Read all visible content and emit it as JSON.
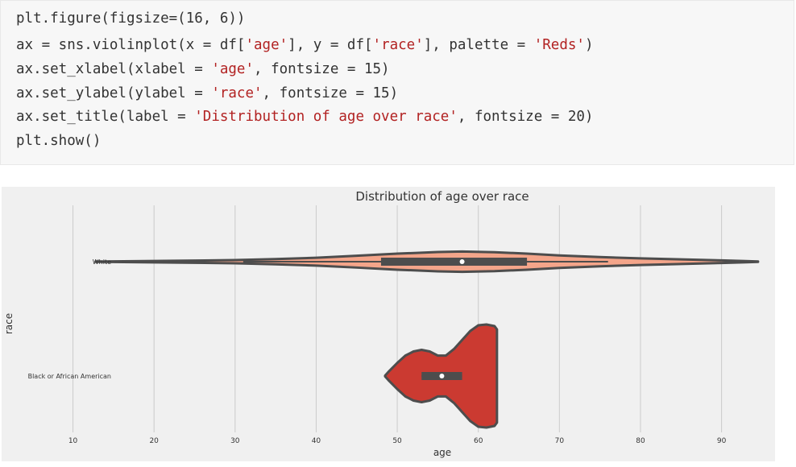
{
  "code_cell": {
    "lines": [
      [
        {
          "t": "plt.figure(figsize=(16, 6))"
        }
      ],
      [
        {
          "t": "ax = sns.violinplot(x = df["
        },
        {
          "t": "'age'",
          "s": 1
        },
        {
          "t": "], y = df["
        },
        {
          "t": "'race'",
          "s": 1
        },
        {
          "t": "], palette = "
        },
        {
          "t": "'Reds'",
          "s": 1
        },
        {
          "t": ")"
        }
      ],
      [
        {
          "t": "ax.set_xlabel(xlabel = "
        },
        {
          "t": "'age'",
          "s": 1
        },
        {
          "t": ", fontsize = 15)"
        }
      ],
      [
        {
          "t": "ax.set_ylabel(ylabel = "
        },
        {
          "t": "'race'",
          "s": 1
        },
        {
          "t": ", fontsize = 15)"
        }
      ],
      [
        {
          "t": "ax.set_title(label = "
        },
        {
          "t": "'Distribution of age over race'",
          "s": 1
        },
        {
          "t": ", fontsize = 20)"
        }
      ],
      [
        {
          "t": "plt.show()"
        }
      ]
    ]
  },
  "colors": {
    "code_bg": "#f7f7f7",
    "code_text": "#333333",
    "code_string": "#b22222",
    "figure_bg": "#f0f0f0",
    "grid": "#cbcbcb",
    "outline": "#4d4d4d",
    "box": "#4d4d4d",
    "median": "#ffffff"
  },
  "chart_data": {
    "type": "violin",
    "title": "Distribution of age over race",
    "xlabel": "age",
    "ylabel": "race",
    "xticks": [
      10,
      20,
      30,
      40,
      50,
      60,
      70,
      80,
      90
    ],
    "xlim": [
      1.2,
      96.6
    ],
    "grid": "vertical",
    "categories": [
      "White",
      "Black or African American"
    ],
    "series": [
      {
        "category": "White",
        "color": "#f4a58a",
        "min": 12.8,
        "max": 94.5,
        "q1": 48,
        "median": 58,
        "q3": 66,
        "whisker_low": 31,
        "whisker_high": 76,
        "density": [
          [
            12.8,
            0.2
          ],
          [
            15,
            0.4
          ],
          [
            20,
            0.8
          ],
          [
            25,
            1.3
          ],
          [
            30,
            2.0
          ],
          [
            35,
            3.2
          ],
          [
            40,
            4.8
          ],
          [
            45,
            7.2
          ],
          [
            50,
            9.8
          ],
          [
            55,
            11.8
          ],
          [
            58,
            12.4
          ],
          [
            62,
            11.6
          ],
          [
            66,
            9.8
          ],
          [
            70,
            7.6
          ],
          [
            75,
            5.6
          ],
          [
            80,
            4.0
          ],
          [
            85,
            2.8
          ],
          [
            90,
            1.6
          ],
          [
            93,
            0.8
          ],
          [
            94.5,
            0.2
          ]
        ]
      },
      {
        "category": "Black or African American",
        "color": "#cb3a31",
        "min": 48.5,
        "max": 62.3,
        "q1": 53,
        "median": 55.5,
        "q3": 58,
        "whisker_low": 53,
        "whisker_high": 58,
        "density": [
          [
            48.5,
            0.5
          ],
          [
            49,
            6
          ],
          [
            50,
            16
          ],
          [
            51,
            25
          ],
          [
            52,
            30
          ],
          [
            53,
            32
          ],
          [
            54,
            30
          ],
          [
            55,
            25
          ],
          [
            56,
            25
          ],
          [
            57,
            33
          ],
          [
            58,
            44
          ],
          [
            59,
            55
          ],
          [
            60,
            62
          ],
          [
            61,
            63
          ],
          [
            62,
            61
          ],
          [
            62.3,
            57
          ]
        ]
      }
    ]
  }
}
